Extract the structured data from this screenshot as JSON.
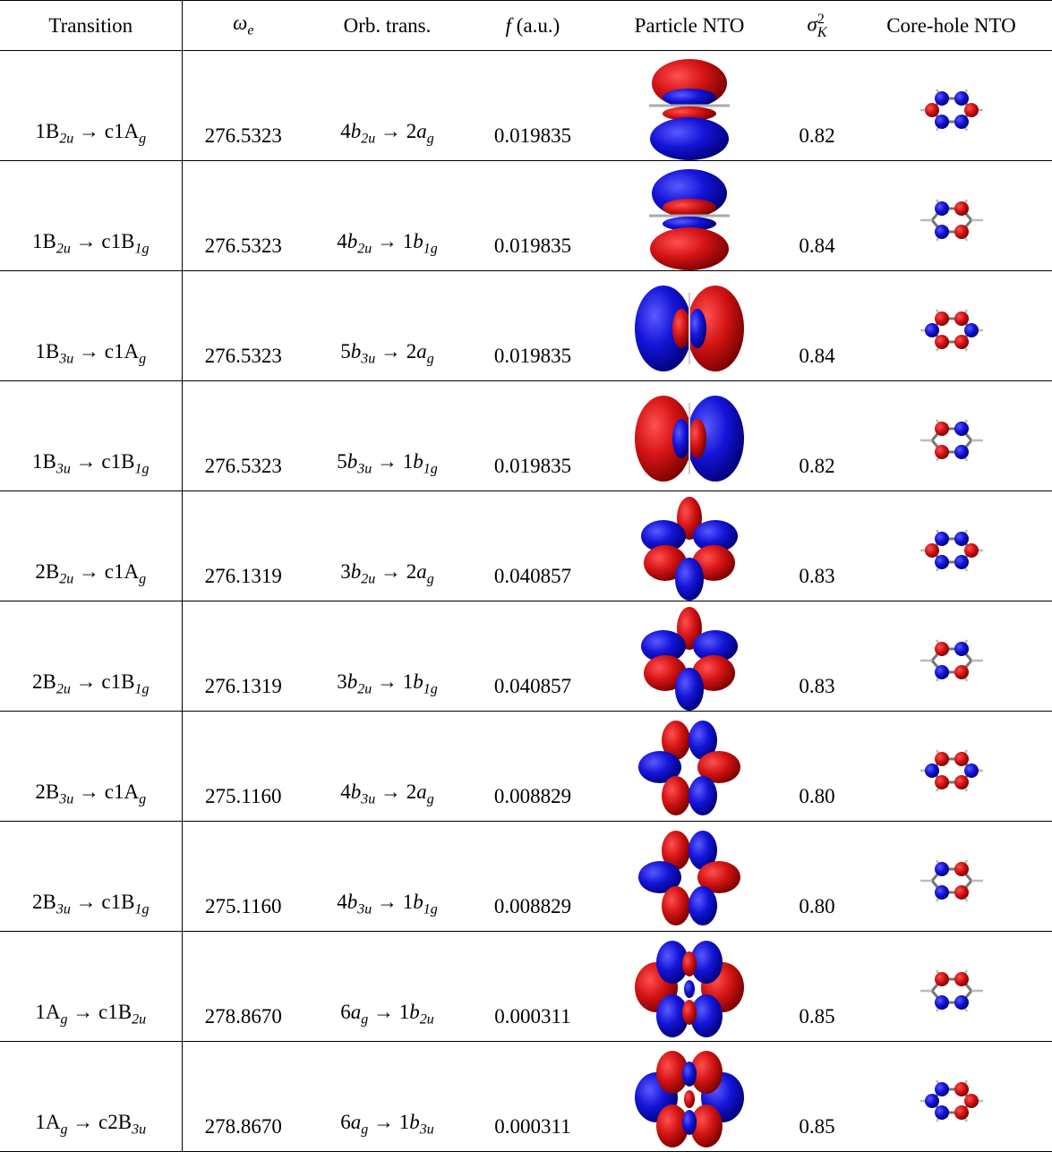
{
  "table": {
    "header": [
      [
        {
          "text": "Transition"
        }
      ],
      [
        {
          "math": "ω"
        },
        {
          "sub": "e"
        }
      ],
      [
        {
          "text": "Orb. trans."
        }
      ],
      [
        {
          "math": "f"
        },
        {
          "text": " (a.u.)"
        }
      ],
      [
        {
          "text": "Particle NTO"
        }
      ],
      [
        {
          "math": "σ"
        },
        {
          "sup": "2",
          "sub": "K"
        }
      ],
      [
        {
          "text": "Core-hole NTO"
        }
      ]
    ],
    "rows": [
      [
        [
          {
            "text": "1B"
          },
          {
            "sub": "2u"
          },
          {
            "text": " → c1A"
          },
          {
            "sub": "g"
          }
        ],
        "276.5323",
        [
          {
            "text": "4"
          },
          {
            "math": "b"
          },
          {
            "sub": "2u"
          },
          {
            "text": " → 2"
          },
          {
            "math": "a"
          },
          {
            "sub": "g"
          }
        ],
        "0.019835",
        "0.82"
      ],
      [
        [
          {
            "text": "1B"
          },
          {
            "sub": "2u"
          },
          {
            "text": " → c1B"
          },
          {
            "sub": "1g"
          }
        ],
        "276.5323",
        [
          {
            "text": "4"
          },
          {
            "math": "b"
          },
          {
            "sub": "2u"
          },
          {
            "text": " → 1"
          },
          {
            "math": "b"
          },
          {
            "sub": "1g"
          }
        ],
        "0.019835",
        "0.84"
      ],
      [
        [
          {
            "text": "1B"
          },
          {
            "sub": "3u"
          },
          {
            "text": " → c1A"
          },
          {
            "sub": "g"
          }
        ],
        "276.5323",
        [
          {
            "text": "5"
          },
          {
            "math": "b"
          },
          {
            "sub": "3u"
          },
          {
            "text": " → 2"
          },
          {
            "math": "a"
          },
          {
            "sub": "g"
          }
        ],
        "0.019835",
        "0.84"
      ],
      [
        [
          {
            "text": "1B"
          },
          {
            "sub": "3u"
          },
          {
            "text": " → c1B"
          },
          {
            "sub": "1g"
          }
        ],
        "276.5323",
        [
          {
            "text": "5"
          },
          {
            "math": "b"
          },
          {
            "sub": "3u"
          },
          {
            "text": " → 1"
          },
          {
            "math": "b"
          },
          {
            "sub": "1g"
          }
        ],
        "0.019835",
        "0.82"
      ],
      [
        [
          {
            "text": "2B"
          },
          {
            "sub": "2u"
          },
          {
            "text": " → c1A"
          },
          {
            "sub": "g"
          }
        ],
        "276.1319",
        [
          {
            "text": "3"
          },
          {
            "math": "b"
          },
          {
            "sub": "2u"
          },
          {
            "text": " → 2"
          },
          {
            "math": "a"
          },
          {
            "sub": "g"
          }
        ],
        "0.040857",
        "0.83"
      ],
      [
        [
          {
            "text": "2B"
          },
          {
            "sub": "2u"
          },
          {
            "text": " → c1B"
          },
          {
            "sub": "1g"
          }
        ],
        "276.1319",
        [
          {
            "text": "3"
          },
          {
            "math": "b"
          },
          {
            "sub": "2u"
          },
          {
            "text": " → 1"
          },
          {
            "math": "b"
          },
          {
            "sub": "1g"
          }
        ],
        "0.040857",
        "0.83"
      ],
      [
        [
          {
            "text": "2B"
          },
          {
            "sub": "3u"
          },
          {
            "text": " → c1A"
          },
          {
            "sub": "g"
          }
        ],
        "275.1160",
        [
          {
            "text": "4"
          },
          {
            "math": "b"
          },
          {
            "sub": "3u"
          },
          {
            "text": " → 2"
          },
          {
            "math": "a"
          },
          {
            "sub": "g"
          }
        ],
        "0.008829",
        "0.80"
      ],
      [
        [
          {
            "text": "2B"
          },
          {
            "sub": "3u"
          },
          {
            "text": " → c1B"
          },
          {
            "sub": "1g"
          }
        ],
        "275.1160",
        [
          {
            "text": "4"
          },
          {
            "math": "b"
          },
          {
            "sub": "3u"
          },
          {
            "text": " → 1"
          },
          {
            "math": "b"
          },
          {
            "sub": "1g"
          }
        ],
        "0.008829",
        "0.80"
      ],
      [
        [
          {
            "text": "1A"
          },
          {
            "sub": "g"
          },
          {
            "text": " → c1B"
          },
          {
            "sub": "2u"
          }
        ],
        "278.8670",
        [
          {
            "text": "6"
          },
          {
            "math": "a"
          },
          {
            "sub": "g"
          },
          {
            "text": " → 1"
          },
          {
            "math": "b"
          },
          {
            "sub": "2u"
          }
        ],
        "0.000311",
        "0.85"
      ],
      [
        [
          {
            "text": "1A"
          },
          {
            "sub": "g"
          },
          {
            "text": " → c2B"
          },
          {
            "sub": "3u"
          }
        ],
        "278.8670",
        [
          {
            "text": "6"
          },
          {
            "math": "a"
          },
          {
            "sub": "g"
          },
          {
            "text": " → 1"
          },
          {
            "math": "b"
          },
          {
            "sub": "3u"
          }
        ],
        "0.000311",
        "0.85"
      ]
    ]
  }
}
